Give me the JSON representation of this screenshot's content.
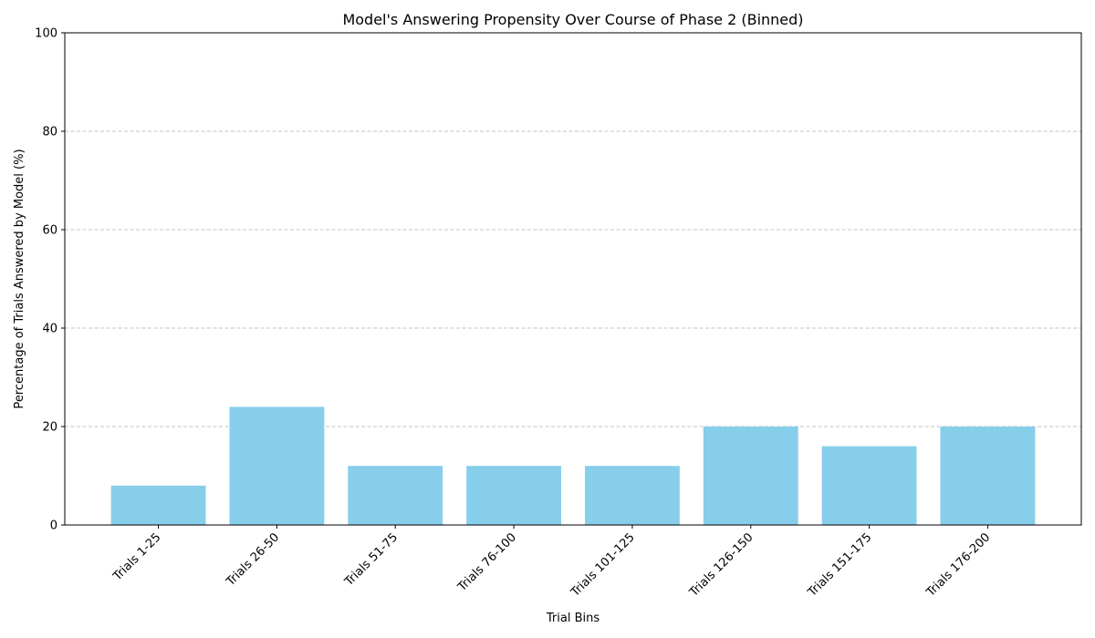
{
  "chart_data": {
    "type": "bar",
    "title": "Model's Answering Propensity Over Course of Phase 2 (Binned)",
    "xlabel": "Trial Bins",
    "ylabel": "Percentage of Trials Answered by Model (%)",
    "categories": [
      "Trials 1-25",
      "Trials 26-50",
      "Trials 51-75",
      "Trials 76-100",
      "Trials 101-125",
      "Trials 126-150",
      "Trials 151-175",
      "Trials 176-200"
    ],
    "values": [
      8,
      24,
      12,
      12,
      12,
      20,
      16,
      20
    ],
    "ylim": [
      0,
      100
    ],
    "yticks": [
      0,
      20,
      40,
      60,
      80,
      100
    ],
    "grid": "y-dashed",
    "bar_color": "#87ceeb"
  }
}
